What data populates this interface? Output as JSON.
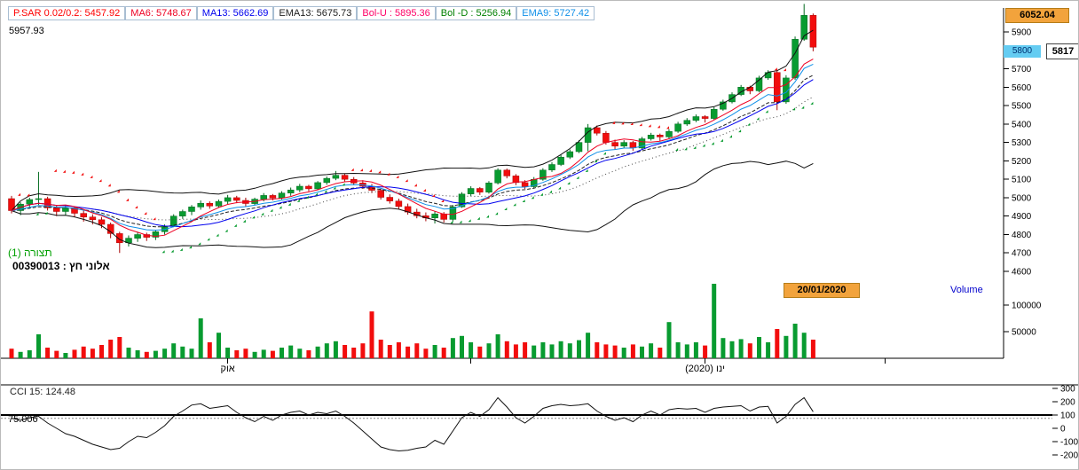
{
  "colors": {
    "up": "#089b30",
    "up_dark": "#046a20",
    "down": "#f20d0d",
    "down_dark": "#a80505",
    "ma6": "#ee0022",
    "ma13": "#0000ee",
    "ema9": "#0f8fe8",
    "ema13": "#222222",
    "bollinger": "#111111",
    "cci_line": "#111111",
    "badge_orange": "#f2a33c",
    "badge_cyan": "#64ccf2"
  },
  "indicator_bar": {
    "items": [
      {
        "name": "psar",
        "text": "P.SAR 0.02/0.2: 5457.92",
        "color": "#ff0000"
      },
      {
        "name": "ma6",
        "text": "MA6: 5748.67",
        "color": "#ee0022"
      },
      {
        "name": "ma13",
        "text": "MA13: 5662.69",
        "color": "#0000ee"
      },
      {
        "name": "ema13",
        "text": "EMA13: 5675.73",
        "color": "#222222"
      },
      {
        "name": "bol-u",
        "text": "Bol-U : 5895.36",
        "color": "#ff0066"
      },
      {
        "name": "bol-d",
        "text": "Bol -D : 5256.94",
        "color": "#008000"
      },
      {
        "name": "ema9",
        "text": "EMA9: 5727.42",
        "color": "#0f8fe8"
      }
    ]
  },
  "corner_value": "5957.93",
  "badges": {
    "high": "6052.04",
    "axis_price": "5800",
    "last_price": "5817"
  },
  "labels": {
    "config": "(תצורה (1",
    "security": "אלוני חץ : 00390013",
    "volume": "Volume",
    "date_badge": "20/01/2020",
    "cci": "CCI 15: 124.48",
    "cci_level": "75.006"
  },
  "axes": {
    "price_ticks": [
      5900,
      5800,
      5700,
      5600,
      5500,
      5400,
      5300,
      5200,
      5100,
      5000,
      4900,
      4800,
      4700,
      4600
    ],
    "volume_ticks": [
      "100000",
      "50000"
    ],
    "cci_ticks": [
      300,
      200,
      100,
      0,
      -100,
      -200
    ],
    "x_ticks": [
      {
        "index": 24,
        "label": "אוק"
      },
      {
        "index": 51,
        "label": ""
      },
      {
        "index": 77,
        "label": "ינו (2020)"
      },
      {
        "index": 97,
        "label": ""
      }
    ]
  },
  "chart_data": {
    "type": "candlestick",
    "title": "אלוני חץ : 00390013",
    "panels": [
      "price",
      "volume",
      "cci"
    ],
    "overlays": [
      "P.SAR 0.02/0.2",
      "MA6",
      "MA13",
      "EMA9",
      "EMA13",
      "Bollinger(20,2)"
    ],
    "price_axis_range": [
      4600,
      5900
    ],
    "cci_axis_range": [
      -250,
      300
    ],
    "cci_overbought_level": 100,
    "cci_reference_level": 75.006,
    "last_close": 5817,
    "period_high": 6052.04,
    "candles": [
      [
        4995,
        5010,
        4915,
        4930
      ],
      [
        4930,
        4975,
        4905,
        4965
      ],
      [
        4965,
        5000,
        4940,
        4990
      ],
      [
        4990,
        5140,
        4960,
        4995
      ],
      [
        4995,
        5005,
        4930,
        4945
      ],
      [
        4945,
        4960,
        4900,
        4925
      ],
      [
        4925,
        4955,
        4905,
        4945
      ],
      [
        4945,
        4950,
        4895,
        4915
      ],
      [
        4915,
        4930,
        4870,
        4895
      ],
      [
        4895,
        4910,
        4855,
        4880
      ],
      [
        4880,
        4895,
        4835,
        4855
      ],
      [
        4855,
        4865,
        4780,
        4805
      ],
      [
        4805,
        4815,
        4700,
        4755
      ],
      [
        4755,
        4795,
        4735,
        4780
      ],
      [
        4780,
        4815,
        4760,
        4800
      ],
      [
        4800,
        4810,
        4765,
        4785
      ],
      [
        4785,
        4825,
        4770,
        4815
      ],
      [
        4815,
        4855,
        4800,
        4845
      ],
      [
        4845,
        4910,
        4840,
        4900
      ],
      [
        4900,
        4935,
        4885,
        4925
      ],
      [
        4925,
        4960,
        4905,
        4950
      ],
      [
        4950,
        4985,
        4935,
        4970
      ],
      [
        4970,
        4980,
        4940,
        4955
      ],
      [
        4955,
        4990,
        4945,
        4980
      ],
      [
        4980,
        5015,
        4965,
        5000
      ],
      [
        5000,
        5010,
        4970,
        4985
      ],
      [
        4985,
        5000,
        4950,
        4968
      ],
      [
        4968,
        5000,
        4958,
        4992
      ],
      [
        4992,
        5025,
        4980,
        5012
      ],
      [
        5012,
        5020,
        4985,
        4998
      ],
      [
        4998,
        5035,
        4990,
        5025
      ],
      [
        5025,
        5055,
        5010,
        5042
      ],
      [
        5042,
        5075,
        5030,
        5062
      ],
      [
        5062,
        5070,
        5035,
        5048
      ],
      [
        5048,
        5090,
        5040,
        5082
      ],
      [
        5082,
        5115,
        5070,
        5105
      ],
      [
        5105,
        5145,
        5095,
        5122
      ],
      [
        5122,
        5130,
        5088,
        5100
      ],
      [
        5100,
        5112,
        5068,
        5080
      ],
      [
        5080,
        5095,
        5048,
        5062
      ],
      [
        5062,
        5075,
        5025,
        5040
      ],
      [
        5040,
        5052,
        4990,
        5002
      ],
      [
        5002,
        5018,
        4968,
        4982
      ],
      [
        4982,
        4995,
        4938,
        4952
      ],
      [
        4952,
        4968,
        4908,
        4922
      ],
      [
        4922,
        4940,
        4888,
        4902
      ],
      [
        4902,
        4920,
        4872,
        4890
      ],
      [
        4890,
        4925,
        4860,
        4912
      ],
      [
        4912,
        4922,
        4865,
        4882
      ],
      [
        4882,
        4960,
        4870,
        4950
      ],
      [
        4950,
        5030,
        4945,
        5020
      ],
      [
        5020,
        5062,
        5008,
        5050
      ],
      [
        5050,
        5058,
        5015,
        5030
      ],
      [
        5030,
        5090,
        5022,
        5080
      ],
      [
        5080,
        5160,
        5072,
        5150
      ],
      [
        5150,
        5158,
        5105,
        5118
      ],
      [
        5118,
        5128,
        5068,
        5082
      ],
      [
        5082,
        5095,
        5048,
        5060
      ],
      [
        5060,
        5112,
        5052,
        5100
      ],
      [
        5100,
        5160,
        5092,
        5150
      ],
      [
        5150,
        5192,
        5140,
        5180
      ],
      [
        5180,
        5232,
        5172,
        5220
      ],
      [
        5220,
        5262,
        5210,
        5250
      ],
      [
        5250,
        5312,
        5242,
        5300
      ],
      [
        5300,
        5400,
        5252,
        5380
      ],
      [
        5380,
        5392,
        5338,
        5350
      ],
      [
        5350,
        5362,
        5288,
        5300
      ],
      [
        5300,
        5315,
        5262,
        5280
      ],
      [
        5280,
        5312,
        5270,
        5300
      ],
      [
        5300,
        5308,
        5255,
        5270
      ],
      [
        5270,
        5330,
        5262,
        5320
      ],
      [
        5320,
        5352,
        5310,
        5340
      ],
      [
        5340,
        5348,
        5308,
        5330
      ],
      [
        5330,
        5372,
        5322,
        5360
      ],
      [
        5360,
        5412,
        5352,
        5400
      ],
      [
        5400,
        5432,
        5390,
        5420
      ],
      [
        5420,
        5452,
        5410,
        5440
      ],
      [
        5440,
        5448,
        5408,
        5430
      ],
      [
        5430,
        5492,
        5422,
        5480
      ],
      [
        5480,
        5532,
        5472,
        5520
      ],
      [
        5520,
        5572,
        5512,
        5560
      ],
      [
        5560,
        5612,
        5552,
        5600
      ],
      [
        5600,
        5608,
        5562,
        5580
      ],
      [
        5580,
        5662,
        5572,
        5650
      ],
      [
        5650,
        5692,
        5640,
        5680
      ],
      [
        5680,
        5695,
        5475,
        5520
      ],
      [
        5520,
        5665,
        5510,
        5650
      ],
      [
        5650,
        5875,
        5640,
        5860
      ],
      [
        5860,
        6052,
        5852,
        5990
      ],
      [
        5990,
        6000,
        5795,
        5817
      ]
    ],
    "volume": [
      18000,
      12000,
      15000,
      45000,
      20000,
      14000,
      10000,
      16000,
      22000,
      18000,
      25000,
      35000,
      40000,
      20000,
      15000,
      12000,
      14000,
      18000,
      28000,
      22000,
      18000,
      75000,
      30000,
      48000,
      20000,
      15000,
      18000,
      12000,
      16000,
      14000,
      20000,
      24000,
      18000,
      15000,
      22000,
      28000,
      32000,
      25000,
      20000,
      28000,
      88000,
      35000,
      25000,
      30000,
      22000,
      28000,
      18000,
      25000,
      20000,
      38000,
      42000,
      30000,
      22000,
      28000,
      45000,
      32000,
      26000,
      30000,
      24000,
      30000,
      26000,
      32000,
      28000,
      34000,
      48000,
      30000,
      26000,
      24000,
      20000,
      26000,
      22000,
      28000,
      20000,
      68000,
      30000,
      26000,
      30000,
      24000,
      140000,
      38000,
      32000,
      36000,
      28000,
      40000,
      30000,
      55000,
      42000,
      65000,
      48000,
      35000
    ],
    "cci": [
      75,
      60,
      80,
      90,
      40,
      0,
      -40,
      -60,
      -90,
      -120,
      -140,
      -160,
      -150,
      -100,
      -60,
      -70,
      -30,
      20,
      90,
      130,
      175,
      185,
      150,
      160,
      170,
      120,
      80,
      50,
      90,
      60,
      100,
      120,
      130,
      100,
      120,
      110,
      130,
      90,
      40,
      -20,
      -80,
      -140,
      -160,
      -170,
      -165,
      -150,
      -140,
      -90,
      -120,
      -20,
      80,
      120,
      90,
      140,
      230,
      160,
      80,
      40,
      90,
      150,
      170,
      180,
      170,
      175,
      185,
      130,
      90,
      60,
      80,
      50,
      100,
      130,
      100,
      140,
      150,
      145,
      150,
      120,
      150,
      160,
      165,
      170,
      130,
      160,
      165,
      40,
      90,
      180,
      230,
      124.48
    ]
  }
}
